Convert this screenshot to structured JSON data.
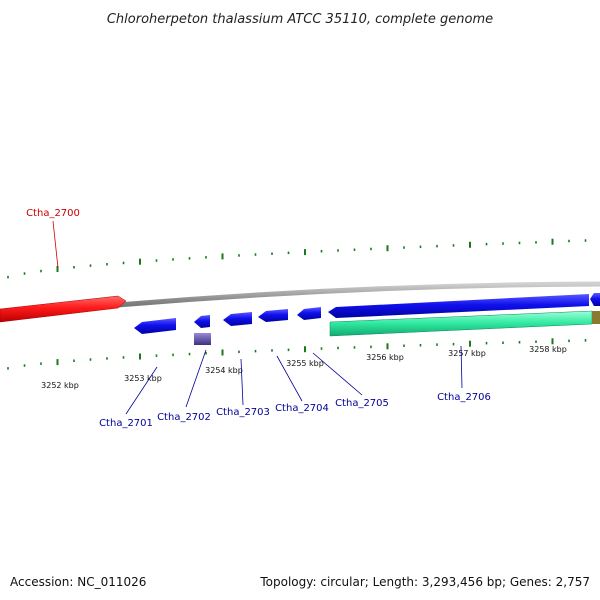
{
  "title": "Chloroherpeton thalassium ATCC 35110, complete genome",
  "footer": {
    "accession": "Accession: NC_011026",
    "topology": "Topology: circular; Length: 3,293,456 bp; Genes: 2,757"
  },
  "scale_labels": [
    "3252 kbp",
    "3253 kbp",
    "3254 kbp",
    "3255 kbp",
    "3256 kbp",
    "3257 kbp",
    "3258 kbp"
  ],
  "genes": {
    "ctha_2700": "Ctha_2700",
    "ctha_2701": "Ctha_2701",
    "ctha_2702": "Ctha_2702",
    "ctha_2703": "Ctha_2703",
    "ctha_2704": "Ctha_2704",
    "ctha_2705": "Ctha_2705",
    "ctha_2706": "Ctha_2706"
  },
  "colors": {
    "forward_gene": "#ff1a1a",
    "reverse_gene": "#1010ee",
    "rna_gene": "#2ee8a0",
    "backbone": "#888888",
    "ticks": "#1a7a1a",
    "label_forward": "#cc0000",
    "label_reverse": "#000099"
  }
}
